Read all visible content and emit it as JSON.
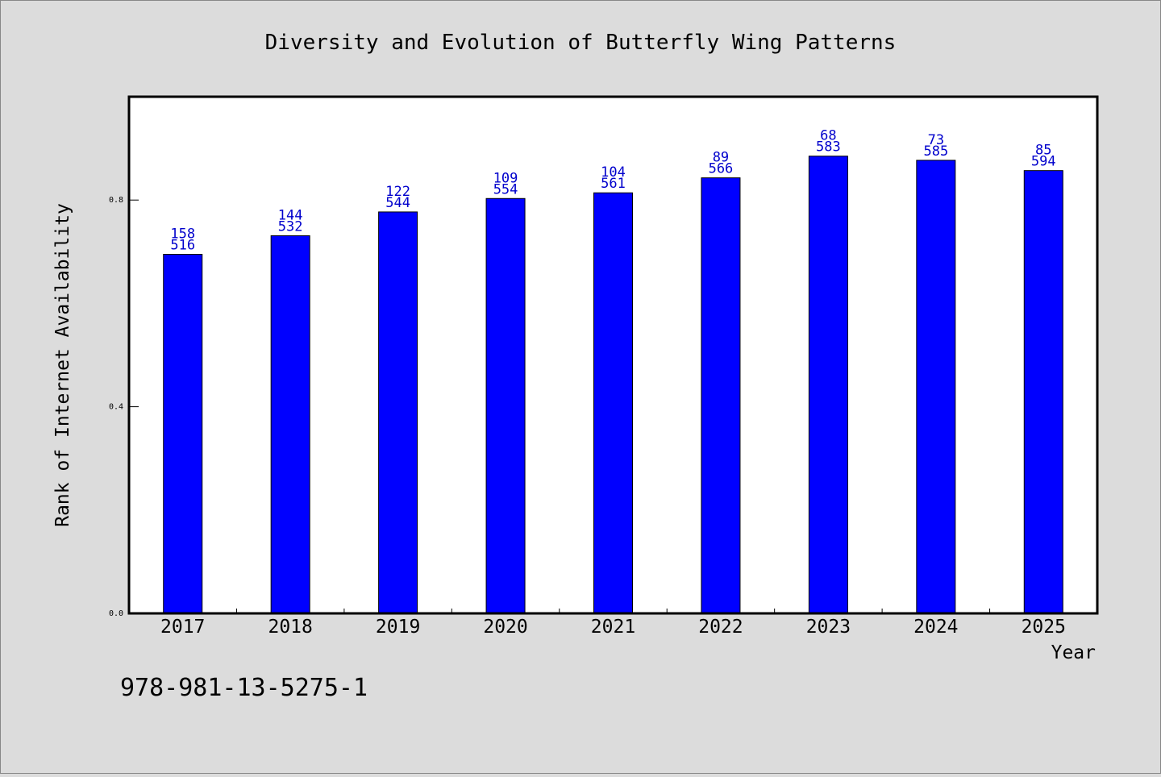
{
  "colors": {
    "background": "#dcdcdc",
    "plot_background": "#ffffff",
    "bar": "#0000ff",
    "data_label": "#0000cc",
    "axis": "#000000"
  },
  "footer": {
    "identifier": "978-981-13-5275-1"
  },
  "chart_data": {
    "type": "bar",
    "title": "Diversity and Evolution of Butterfly Wing Patterns",
    "xlabel": "Year",
    "ylabel": "Rank of Internet Availability",
    "categories": [
      "2017",
      "2018",
      "2019",
      "2020",
      "2021",
      "2022",
      "2023",
      "2024",
      "2025"
    ],
    "values": [
      0.695,
      0.731,
      0.777,
      0.803,
      0.814,
      0.843,
      0.885,
      0.877,
      0.857
    ],
    "value_labels_top": [
      "158",
      "144",
      "122",
      "109",
      "104",
      "89",
      "68",
      "73",
      "85"
    ],
    "value_labels_bottom": [
      "516",
      "532",
      "544",
      "554",
      "561",
      "566",
      "583",
      "585",
      "594"
    ],
    "ylim": [
      0,
      1.0
    ],
    "xlim": [
      -0.5,
      8.5
    ],
    "yticks": [
      0.0,
      0.4,
      0.8
    ],
    "ytick_labels": [
      "0.0",
      "0.4",
      "0.8"
    ],
    "grid": false,
    "legend": "none"
  }
}
